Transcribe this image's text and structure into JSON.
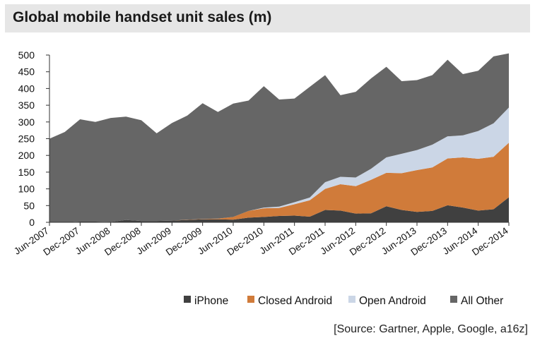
{
  "chart_data": {
    "type": "area",
    "stacked": true,
    "title": "Global mobile handset unit sales (m)",
    "ylim": [
      0,
      500
    ],
    "yticks": [
      0,
      50,
      100,
      150,
      200,
      250,
      300,
      350,
      400,
      450,
      500
    ],
    "x": [
      "Jun-2007",
      "Sep-2007",
      "Dec-2007",
      "Mar-2008",
      "Jun-2008",
      "Sep-2008",
      "Dec-2008",
      "Mar-2009",
      "Jun-2009",
      "Sep-2009",
      "Dec-2009",
      "Mar-2010",
      "Jun-2010",
      "Sep-2010",
      "Dec-2010",
      "Mar-2011",
      "Jun-2011",
      "Sep-2011",
      "Dec-2011",
      "Mar-2012",
      "Jun-2012",
      "Sep-2012",
      "Dec-2012",
      "Mar-2013",
      "Jun-2013",
      "Sep-2013",
      "Dec-2013",
      "Mar-2014",
      "Jun-2014",
      "Sep-2014",
      "Dec-2014"
    ],
    "xtick_labels": [
      "Jun-2007",
      "Dec-2007",
      "Jun-2008",
      "Dec-2008",
      "Jun-2009",
      "Dec-2009",
      "Jun-2010",
      "Dec-2010",
      "Jun-2011",
      "Dec-2011",
      "Jun-2012",
      "Dec-2012",
      "Jun-2013",
      "Dec-2013",
      "Jun-2014",
      "Dec-2014"
    ],
    "series": [
      {
        "name": "iPhone",
        "color": "#404040",
        "values": [
          0,
          0,
          2,
          2,
          1,
          7,
          4,
          4,
          5,
          7,
          9,
          9,
          8,
          14,
          16,
          19,
          20,
          17,
          37,
          35,
          26,
          27,
          48,
          37,
          31,
          34,
          51,
          44,
          35,
          39,
          75
        ]
      },
      {
        "name": "Closed Android",
        "color": "#d07b3a",
        "values": [
          0,
          0,
          0,
          0,
          0,
          0,
          0,
          0,
          0,
          1,
          1,
          2,
          8,
          20,
          26,
          24,
          34,
          49,
          63,
          79,
          82,
          100,
          100,
          110,
          125,
          130,
          140,
          150,
          155,
          157,
          163
        ]
      },
      {
        "name": "Open Android",
        "color": "#cbd6e6",
        "values": [
          0,
          0,
          0,
          0,
          0,
          0,
          0,
          0,
          0,
          0,
          0,
          0,
          0,
          0,
          2,
          4,
          6,
          8,
          20,
          22,
          26,
          33,
          46,
          58,
          60,
          68,
          66,
          66,
          83,
          100,
          105
        ]
      },
      {
        "name": "All Other",
        "color": "#666666",
        "values": [
          250,
          270,
          306,
          298,
          311,
          309,
          301,
          262,
          292,
          311,
          346,
          319,
          339,
          330,
          363,
          320,
          310,
          331,
          320,
          244,
          256,
          270,
          271,
          217,
          209,
          208,
          229,
          183,
          180,
          200,
          162
        ]
      }
    ],
    "legend": [
      "iPhone",
      "Closed Android",
      "Open Android",
      "All Other"
    ],
    "legend_position": "bottom-right",
    "grid": false
  },
  "source": "[Source: Gartner, Apple, Google, a16z]"
}
